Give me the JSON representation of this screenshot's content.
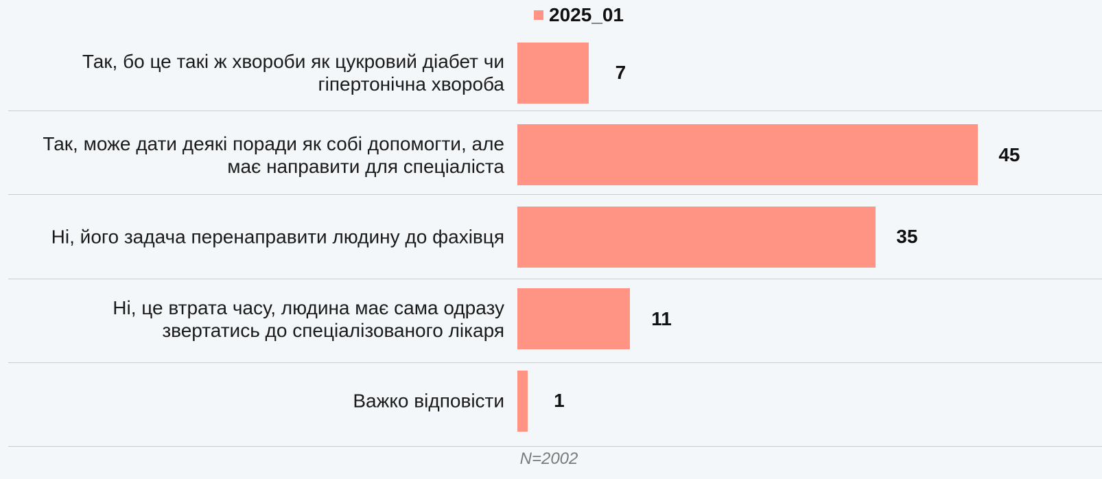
{
  "chart_data": {
    "type": "bar",
    "orientation": "horizontal",
    "categories": [
      "Так, бо це такі ж хвороби як цукровий діабет чи гіпертонічна хвороба",
      "Так, може дати деякі поради як собі допомогти, але має направити для спеціаліста",
      "Ні, його задача перенаправити людину до фахівця",
      "Ні, це втрата часу, людина має сама одразу звертатись до спеціалізованого лікаря",
      "Важко відповісти"
    ],
    "series": [
      {
        "name": "2025_01",
        "color": "#ff9485",
        "values": [
          7,
          45,
          35,
          11,
          1
        ]
      }
    ],
    "legend": "top",
    "footnote": "N=2002"
  }
}
